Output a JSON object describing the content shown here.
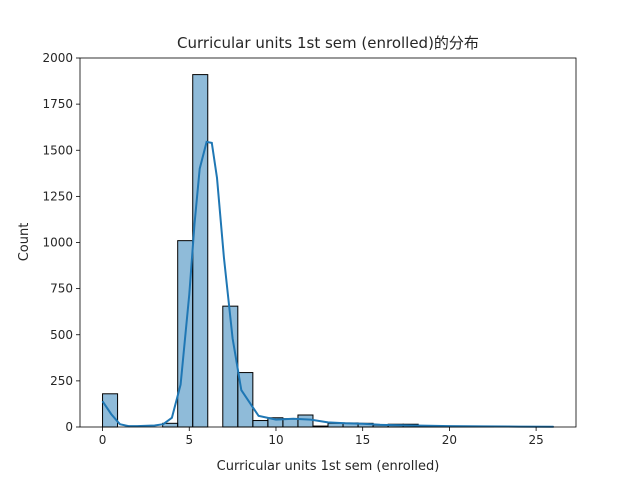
{
  "chart_data": {
    "type": "histogram",
    "title": "Curricular units 1st sem (enrolled)的分布",
    "xlabel": "Curricular units 1st sem (enrolled)",
    "ylabel": "Count",
    "xlim": [
      -1.3,
      27.3
    ],
    "ylim": [
      0,
      2000
    ],
    "x_ticks": [
      0,
      5,
      10,
      15,
      20,
      25
    ],
    "y_ticks": [
      0,
      250,
      500,
      750,
      1000,
      1250,
      1500,
      1750,
      2000
    ],
    "bin_width": 0.8667,
    "bins": [
      {
        "x0": 0.0,
        "count": 180
      },
      {
        "x0": 0.867,
        "count": 0
      },
      {
        "x0": 1.733,
        "count": 0
      },
      {
        "x0": 2.6,
        "count": 0
      },
      {
        "x0": 3.467,
        "count": 20
      },
      {
        "x0": 4.333,
        "count": 1010
      },
      {
        "x0": 5.2,
        "count": 1910
      },
      {
        "x0": 6.067,
        "count": 0
      },
      {
        "x0": 6.933,
        "count": 655
      },
      {
        "x0": 7.8,
        "count": 295
      },
      {
        "x0": 8.667,
        "count": 35
      },
      {
        "x0": 9.533,
        "count": 50
      },
      {
        "x0": 10.4,
        "count": 45
      },
      {
        "x0": 11.267,
        "count": 65
      },
      {
        "x0": 12.133,
        "count": 5
      },
      {
        "x0": 13.0,
        "count": 20
      },
      {
        "x0": 13.867,
        "count": 22
      },
      {
        "x0": 14.733,
        "count": 20
      },
      {
        "x0": 15.6,
        "count": 10
      },
      {
        "x0": 16.467,
        "count": 15
      },
      {
        "x0": 17.333,
        "count": 15
      },
      {
        "x0": 18.2,
        "count": 3
      },
      {
        "x0": 19.067,
        "count": 2
      },
      {
        "x0": 19.933,
        "count": 2
      },
      {
        "x0": 20.8,
        "count": 3
      },
      {
        "x0": 21.667,
        "count": 2
      },
      {
        "x0": 22.533,
        "count": 0
      },
      {
        "x0": 23.4,
        "count": 1
      },
      {
        "x0": 24.267,
        "count": 0
      },
      {
        "x0": 25.133,
        "count": 1
      }
    ],
    "kde": {
      "x": [
        0,
        0.5,
        1,
        1.5,
        2,
        3,
        3.5,
        4,
        4.5,
        5,
        5.3,
        5.6,
        6,
        6.3,
        6.6,
        7,
        7.5,
        8,
        9,
        10,
        11,
        12,
        13,
        14,
        15,
        16,
        18,
        20,
        22,
        24,
        26
      ],
      "y": [
        140,
        70,
        15,
        5,
        5,
        8,
        15,
        50,
        230,
        720,
        1100,
        1400,
        1545,
        1540,
        1350,
        920,
        480,
        200,
        60,
        40,
        45,
        40,
        25,
        20,
        18,
        12,
        8,
        5,
        3,
        2,
        1
      ]
    },
    "colors": {
      "bar_fill": "#1f77b4",
      "bar_fill_opacity": 0.5,
      "bar_edge": "#000000",
      "kde_line": "#1f77b4"
    },
    "grid": false,
    "legend": "none"
  }
}
